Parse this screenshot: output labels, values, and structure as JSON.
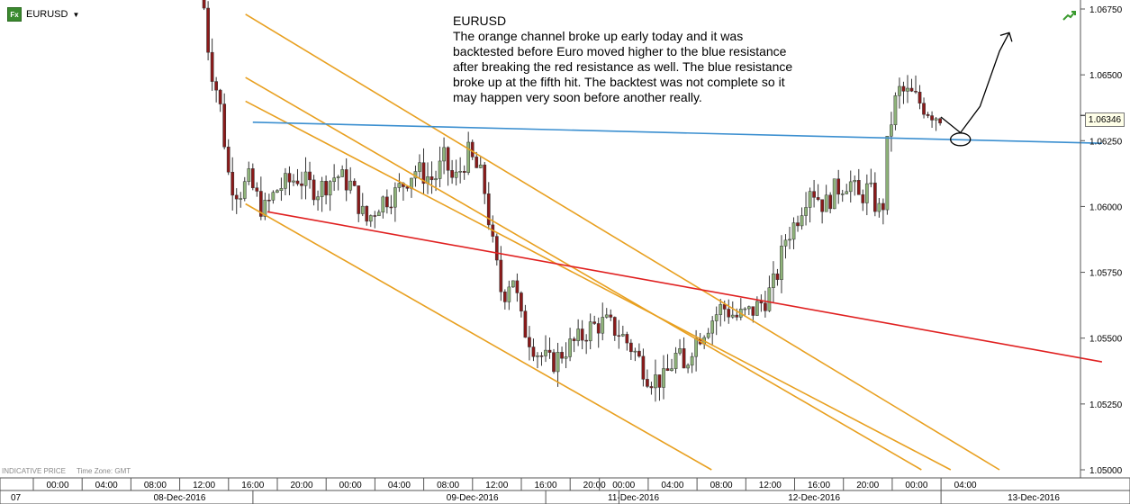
{
  "header": {
    "symbol_badge": "Fx",
    "symbol": "EURUSD",
    "dropdown_icon": "caret-down-icon",
    "trend_icon": "trend-up-icon"
  },
  "annotation": {
    "title": "EURUSD",
    "body": "The orange channel broke up early today and it was backtested before Euro moved higher to the blue resistance after breaking the red resistance as well. The blue resistance broke up at the fifth hit. The backtest was not complete so it may happen very soon before another really."
  },
  "footer": {
    "price_type": "INDICATIVE PRICE",
    "timezone": "Time Zone: GMT"
  },
  "current_price_label": "1.06346",
  "colors": {
    "bull_candle": "#8fb47a",
    "bear_candle": "#8b1a1a",
    "channel": "#e8a020",
    "blue_resistance": "#3b8fd0",
    "red_resistance": "#e02020"
  },
  "chart_data": {
    "type": "candlestick",
    "symbol": "EURUSD",
    "ylim": [
      1.05,
      1.0675
    ],
    "y_ticks": [
      "1.06750",
      "1.06500",
      "1.06250",
      "1.06000",
      "1.05750",
      "1.05500",
      "1.05250",
      "1.05000"
    ],
    "y_tick_values": [
      1.0675,
      1.065,
      1.0625,
      1.06,
      1.0575,
      1.055,
      1.0525,
      1.05
    ],
    "x_hour_labels": [
      "00:00",
      "04:00",
      "08:00",
      "12:00",
      "16:00",
      "20:00",
      "00:00",
      "04:00",
      "08:00",
      "12:00",
      "16:00",
      "20:00",
      "00:00",
      "04:00",
      "08:00",
      "12:00",
      "16:00",
      "20:00",
      "00:00",
      "04:00"
    ],
    "x_hour_positions": [
      0.0,
      1.0,
      2.0,
      3.0,
      4.0,
      5.0,
      6.0,
      7.0,
      8.0,
      9.0,
      10.0,
      11.0,
      11.6,
      12.6,
      13.6,
      14.6,
      15.6,
      16.6,
      17.6,
      18.6
    ],
    "x_date_labels": [
      "07",
      "08-Dec-2016",
      "09-Dec-2016",
      "11-Dec-2016",
      "12-Dec-2016",
      "13-Dec-2016"
    ],
    "x_date_positions": [
      -1.3,
      2.5,
      8.5,
      11.8,
      15.5,
      20.0
    ],
    "current_price": 1.06346,
    "price_path": [
      [
        3.0,
        1.069
      ],
      [
        3.2,
        1.0655
      ],
      [
        3.4,
        1.064
      ],
      [
        3.6,
        1.061
      ],
      [
        3.8,
        1.0605
      ],
      [
        4.0,
        1.061
      ],
      [
        4.3,
        1.0598
      ],
      [
        4.6,
        1.0607
      ],
      [
        5.0,
        1.0611
      ],
      [
        5.4,
        1.0606
      ],
      [
        5.8,
        1.0612
      ],
      [
        6.1,
        1.0608
      ],
      [
        6.4,
        1.0594
      ],
      [
        6.7,
        1.0602
      ],
      [
        7.0,
        1.0605
      ],
      [
        7.4,
        1.0614
      ],
      [
        7.8,
        1.061
      ],
      [
        8.0,
        1.0618
      ],
      [
        8.2,
        1.0609
      ],
      [
        8.5,
        1.062
      ],
      [
        8.8,
        1.061
      ],
      [
        9.0,
        1.0585
      ],
      [
        9.2,
        1.0565
      ],
      [
        9.4,
        1.0575
      ],
      [
        9.6,
        1.0555
      ],
      [
        9.9,
        1.0545
      ],
      [
        10.2,
        1.054
      ],
      [
        10.5,
        1.0546
      ],
      [
        10.8,
        1.055
      ],
      [
        11.0,
        1.0554
      ],
      [
        11.3,
        1.0556
      ],
      [
        11.6,
        1.0552
      ],
      [
        11.9,
        1.0545
      ],
      [
        12.2,
        1.0535
      ],
      [
        12.5,
        1.0534
      ],
      [
        12.8,
        1.0545
      ],
      [
        12.9,
        1.0536
      ],
      [
        13.1,
        1.0548
      ],
      [
        13.4,
        1.0555
      ],
      [
        13.7,
        1.0562
      ],
      [
        14.0,
        1.0558
      ],
      [
        14.3,
        1.056
      ],
      [
        14.6,
        1.0565
      ],
      [
        14.8,
        1.0572
      ],
      [
        15.0,
        1.0588
      ],
      [
        15.2,
        1.0594
      ],
      [
        15.5,
        1.0608
      ],
      [
        15.8,
        1.06
      ],
      [
        16.0,
        1.0606
      ],
      [
        16.3,
        1.061
      ],
      [
        16.5,
        1.0603
      ],
      [
        16.7,
        1.0607
      ],
      [
        16.9,
        1.0598
      ],
      [
        17.0,
        1.0601
      ],
      [
        17.1,
        1.0627
      ],
      [
        17.3,
        1.0644
      ],
      [
        17.6,
        1.0642
      ],
      [
        17.9,
        1.0637
      ],
      [
        18.1,
        1.06346
      ]
    ],
    "lines": [
      {
        "name": "orange channel 1",
        "color": "#e8a020",
        "points": [
          [
            3.85,
            1.0673
          ],
          [
            19.3,
            1.05
          ]
        ]
      },
      {
        "name": "orange channel 2",
        "color": "#e8a020",
        "points": [
          [
            3.85,
            1.0649
          ],
          [
            17.7,
            1.05
          ]
        ]
      },
      {
        "name": "orange channel 3",
        "color": "#e8a020",
        "points": [
          [
            3.85,
            1.064
          ],
          [
            18.3,
            1.05
          ]
        ]
      },
      {
        "name": "orange channel 4",
        "color": "#e8a020",
        "points": [
          [
            3.85,
            1.0601
          ],
          [
            13.4,
            1.05
          ]
        ]
      },
      {
        "name": "blue resistance",
        "color": "#3b8fd0",
        "points": [
          [
            4.0,
            1.0632
          ],
          [
            21.4,
            1.0624
          ]
        ]
      },
      {
        "name": "red resistance",
        "color": "#e02020",
        "points": [
          [
            4.3,
            1.0598
          ],
          [
            21.4,
            1.0541
          ]
        ]
      }
    ],
    "hand_drawn": {
      "circle_center": [
        18.5,
        1.06255
      ],
      "arrow_points": [
        [
          18.1,
          1.0634
        ],
        [
          18.5,
          1.0628
        ],
        [
          18.9,
          1.0638
        ],
        [
          19.3,
          1.0659
        ],
        [
          19.5,
          1.0666
        ]
      ]
    }
  }
}
